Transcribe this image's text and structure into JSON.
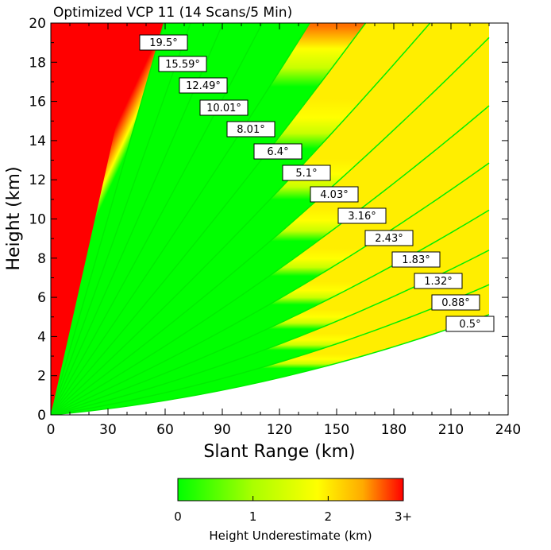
{
  "chart_data": {
    "type": "heatmap",
    "title": "Optimized VCP 11 (14 Scans/5 Min)",
    "xlabel": "Slant Range (km)",
    "ylabel": "Height (km)",
    "xlim": [
      0,
      240
    ],
    "ylim": [
      0,
      20
    ],
    "x_ticks": [
      0,
      30,
      60,
      90,
      120,
      150,
      180,
      210,
      240
    ],
    "y_ticks": [
      0,
      2,
      4,
      6,
      8,
      10,
      12,
      14,
      16,
      18,
      20
    ],
    "max_range_km": 230,
    "elevation_angles": [
      "0.5°",
      "0.88°",
      "1.32°",
      "1.83°",
      "2.43°",
      "3.16°",
      "4.03°",
      "5.1°",
      "6.4°",
      "8.01°",
      "10.01°",
      "12.49°",
      "15.59°",
      "19.5°"
    ],
    "elevation_values": [
      0.5,
      0.88,
      1.32,
      1.83,
      2.43,
      3.16,
      4.03,
      5.1,
      6.4,
      8.01,
      10.01,
      12.49,
      15.59,
      19.5
    ],
    "colorbar": {
      "label": "Height Underestimate (km)",
      "ticks": [
        "0",
        "1",
        "2",
        "3+"
      ],
      "tick_values": [
        0,
        1,
        2,
        3
      ],
      "colors": [
        "#00ff00",
        "#ffff00",
        "#ff0000"
      ]
    }
  }
}
